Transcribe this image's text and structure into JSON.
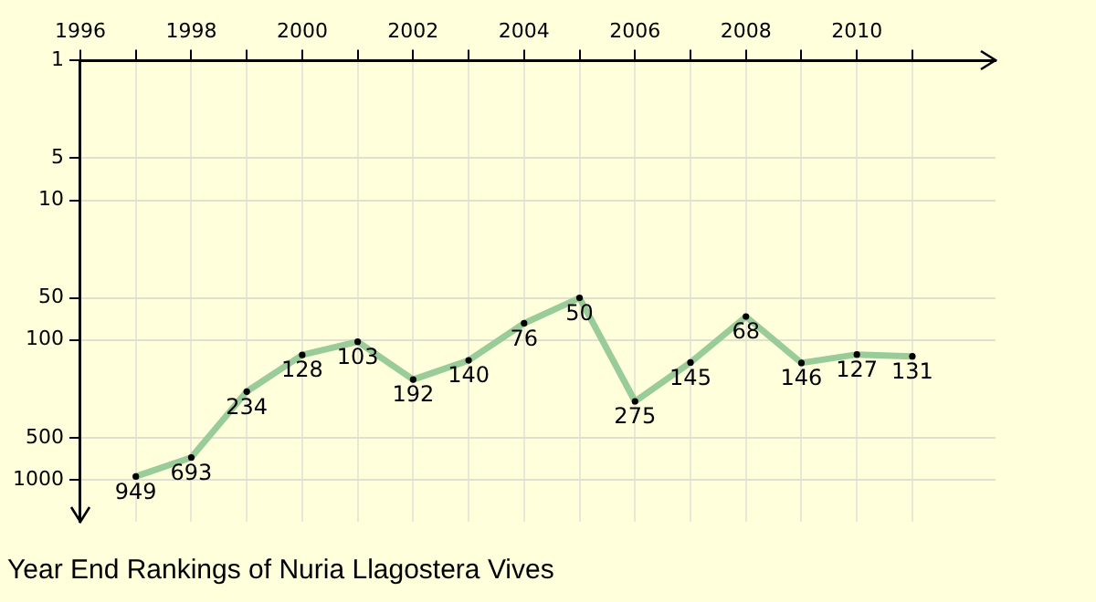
{
  "chart_data": {
    "type": "line",
    "title": "Year End Rankings of Nuria Llagostera Vives",
    "x": [
      1997,
      1998,
      1999,
      2000,
      2001,
      2002,
      2003,
      2004,
      2005,
      2006,
      2007,
      2008,
      2009,
      2010,
      2011
    ],
    "series": [
      {
        "color": "#99cc99",
        "values": [
          949,
          693,
          234,
          128,
          103,
          192,
          140,
          76,
          50,
          275,
          145,
          68,
          146,
          127,
          131
        ]
      }
    ],
    "xlim": [
      1996,
      2012.5
    ],
    "xticks": [
      1996,
      {
        "value": 1997,
        "label": null
      },
      1998,
      {
        "value": 1999,
        "label": null
      },
      2000,
      {
        "value": 2001,
        "label": null
      },
      2002,
      {
        "value": 2003,
        "label": null
      },
      2004,
      {
        "value": 2005,
        "label": null
      },
      2006,
      {
        "value": 2007,
        "label": null
      },
      2008,
      {
        "value": 2009,
        "label": null
      },
      2010,
      {
        "value": 2011,
        "label": null
      }
    ],
    "ylim": [
      2000,
      1
    ],
    "yticks": [
      1,
      5,
      10,
      50,
      100,
      500,
      1000
    ],
    "log": "y",
    "grid": true,
    "marker": "circle",
    "line_style": "solid",
    "data_labels": true,
    "legend": false
  }
}
